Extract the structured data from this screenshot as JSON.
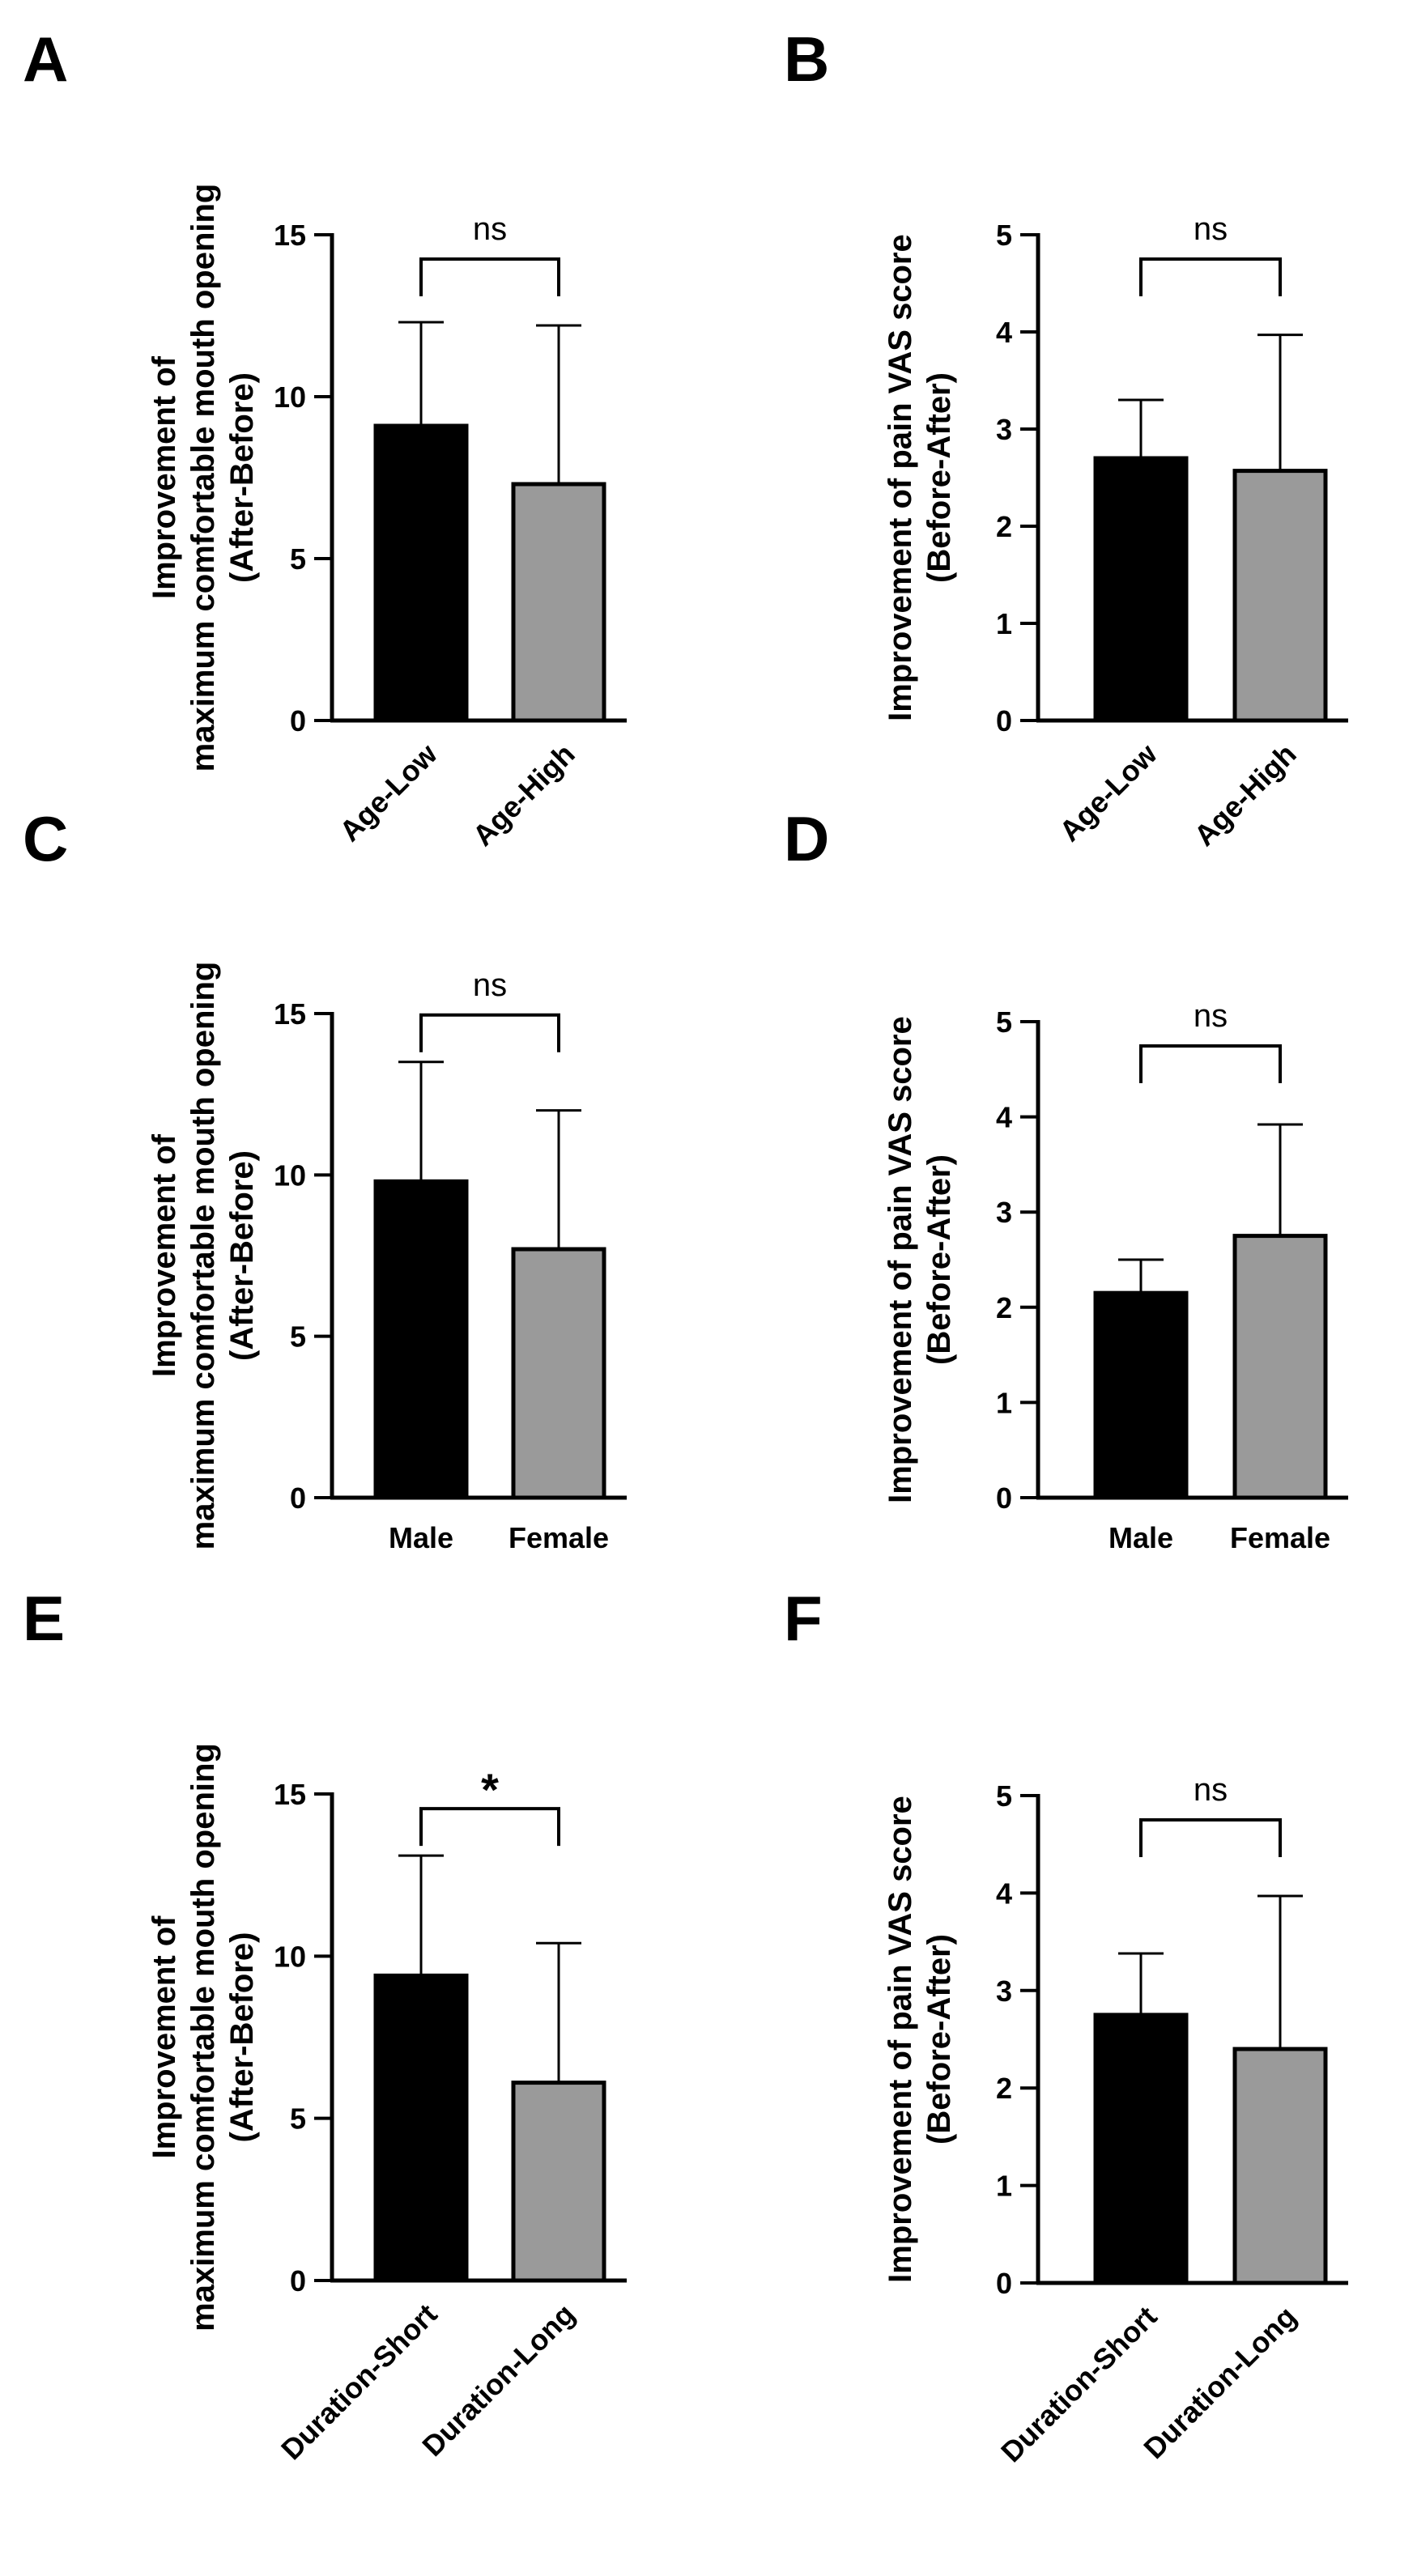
{
  "chart_data": [
    {
      "panel": "A",
      "type": "bar",
      "ylabel": [
        "Improvement of",
        "maximum comfortable mouth opening",
        "(After-Before)"
      ],
      "ylim": [
        0,
        15
      ],
      "yticks": [
        0,
        5,
        10,
        15
      ],
      "categories": [
        "Age-Low",
        "Age-High"
      ],
      "values": [
        9.1,
        7.3
      ],
      "errors": [
        3.2,
        4.9
      ],
      "bar_colors": [
        "#000000",
        "#9a9a9a"
      ],
      "significance": "ns",
      "rotated_labels": true
    },
    {
      "panel": "B",
      "type": "bar",
      "ylabel": [
        "Improvement of pain VAS score",
        "(Before-After)"
      ],
      "ylim": [
        0,
        5
      ],
      "yticks": [
        0,
        1,
        2,
        3,
        4,
        5
      ],
      "categories": [
        "Age-Low",
        "Age-High"
      ],
      "values": [
        2.7,
        2.57
      ],
      "errors": [
        0.6,
        1.4
      ],
      "bar_colors": [
        "#000000",
        "#9a9a9a"
      ],
      "significance": "ns",
      "rotated_labels": true
    },
    {
      "panel": "C",
      "type": "bar",
      "ylabel": [
        "Improvement of",
        "maximum comfortable mouth opening",
        "(After-Before)"
      ],
      "ylim": [
        0,
        15
      ],
      "yticks": [
        0,
        5,
        10,
        15
      ],
      "categories": [
        "Male",
        "Female"
      ],
      "values": [
        9.8,
        7.7
      ],
      "errors": [
        3.7,
        4.3
      ],
      "bar_colors": [
        "#000000",
        "#9a9a9a"
      ],
      "significance": "ns",
      "rotated_labels": false
    },
    {
      "panel": "D",
      "type": "bar",
      "ylabel": [
        "Improvement of pain VAS score",
        "(Before-After)"
      ],
      "ylim": [
        0,
        5
      ],
      "yticks": [
        0,
        1,
        2,
        3,
        4,
        5
      ],
      "categories": [
        "Male",
        "Female"
      ],
      "values": [
        2.15,
        2.75
      ],
      "errors": [
        0.35,
        1.17
      ],
      "bar_colors": [
        "#000000",
        "#9a9a9a"
      ],
      "significance": "ns",
      "rotated_labels": false
    },
    {
      "panel": "E",
      "type": "bar",
      "ylabel": [
        "Improvement of",
        "maximum comfortable mouth opening",
        "(After-Before)"
      ],
      "ylim": [
        0,
        15
      ],
      "yticks": [
        0,
        5,
        10,
        15
      ],
      "categories": [
        "Duration-Short",
        "Duration-Long"
      ],
      "values": [
        9.4,
        6.1
      ],
      "errors": [
        3.7,
        4.3
      ],
      "bar_colors": [
        "#000000",
        "#9a9a9a"
      ],
      "significance": "*",
      "rotated_labels": true
    },
    {
      "panel": "F",
      "type": "bar",
      "ylabel": [
        "Improvement of pain VAS score",
        "(Before-After)"
      ],
      "ylim": [
        0,
        5
      ],
      "yticks": [
        0,
        1,
        2,
        3,
        4,
        5
      ],
      "categories": [
        "Duration-Short",
        "Duration-Long"
      ],
      "values": [
        2.75,
        2.4
      ],
      "errors": [
        0.63,
        1.57
      ],
      "bar_colors": [
        "#000000",
        "#9a9a9a"
      ],
      "significance": "ns",
      "rotated_labels": true
    }
  ]
}
